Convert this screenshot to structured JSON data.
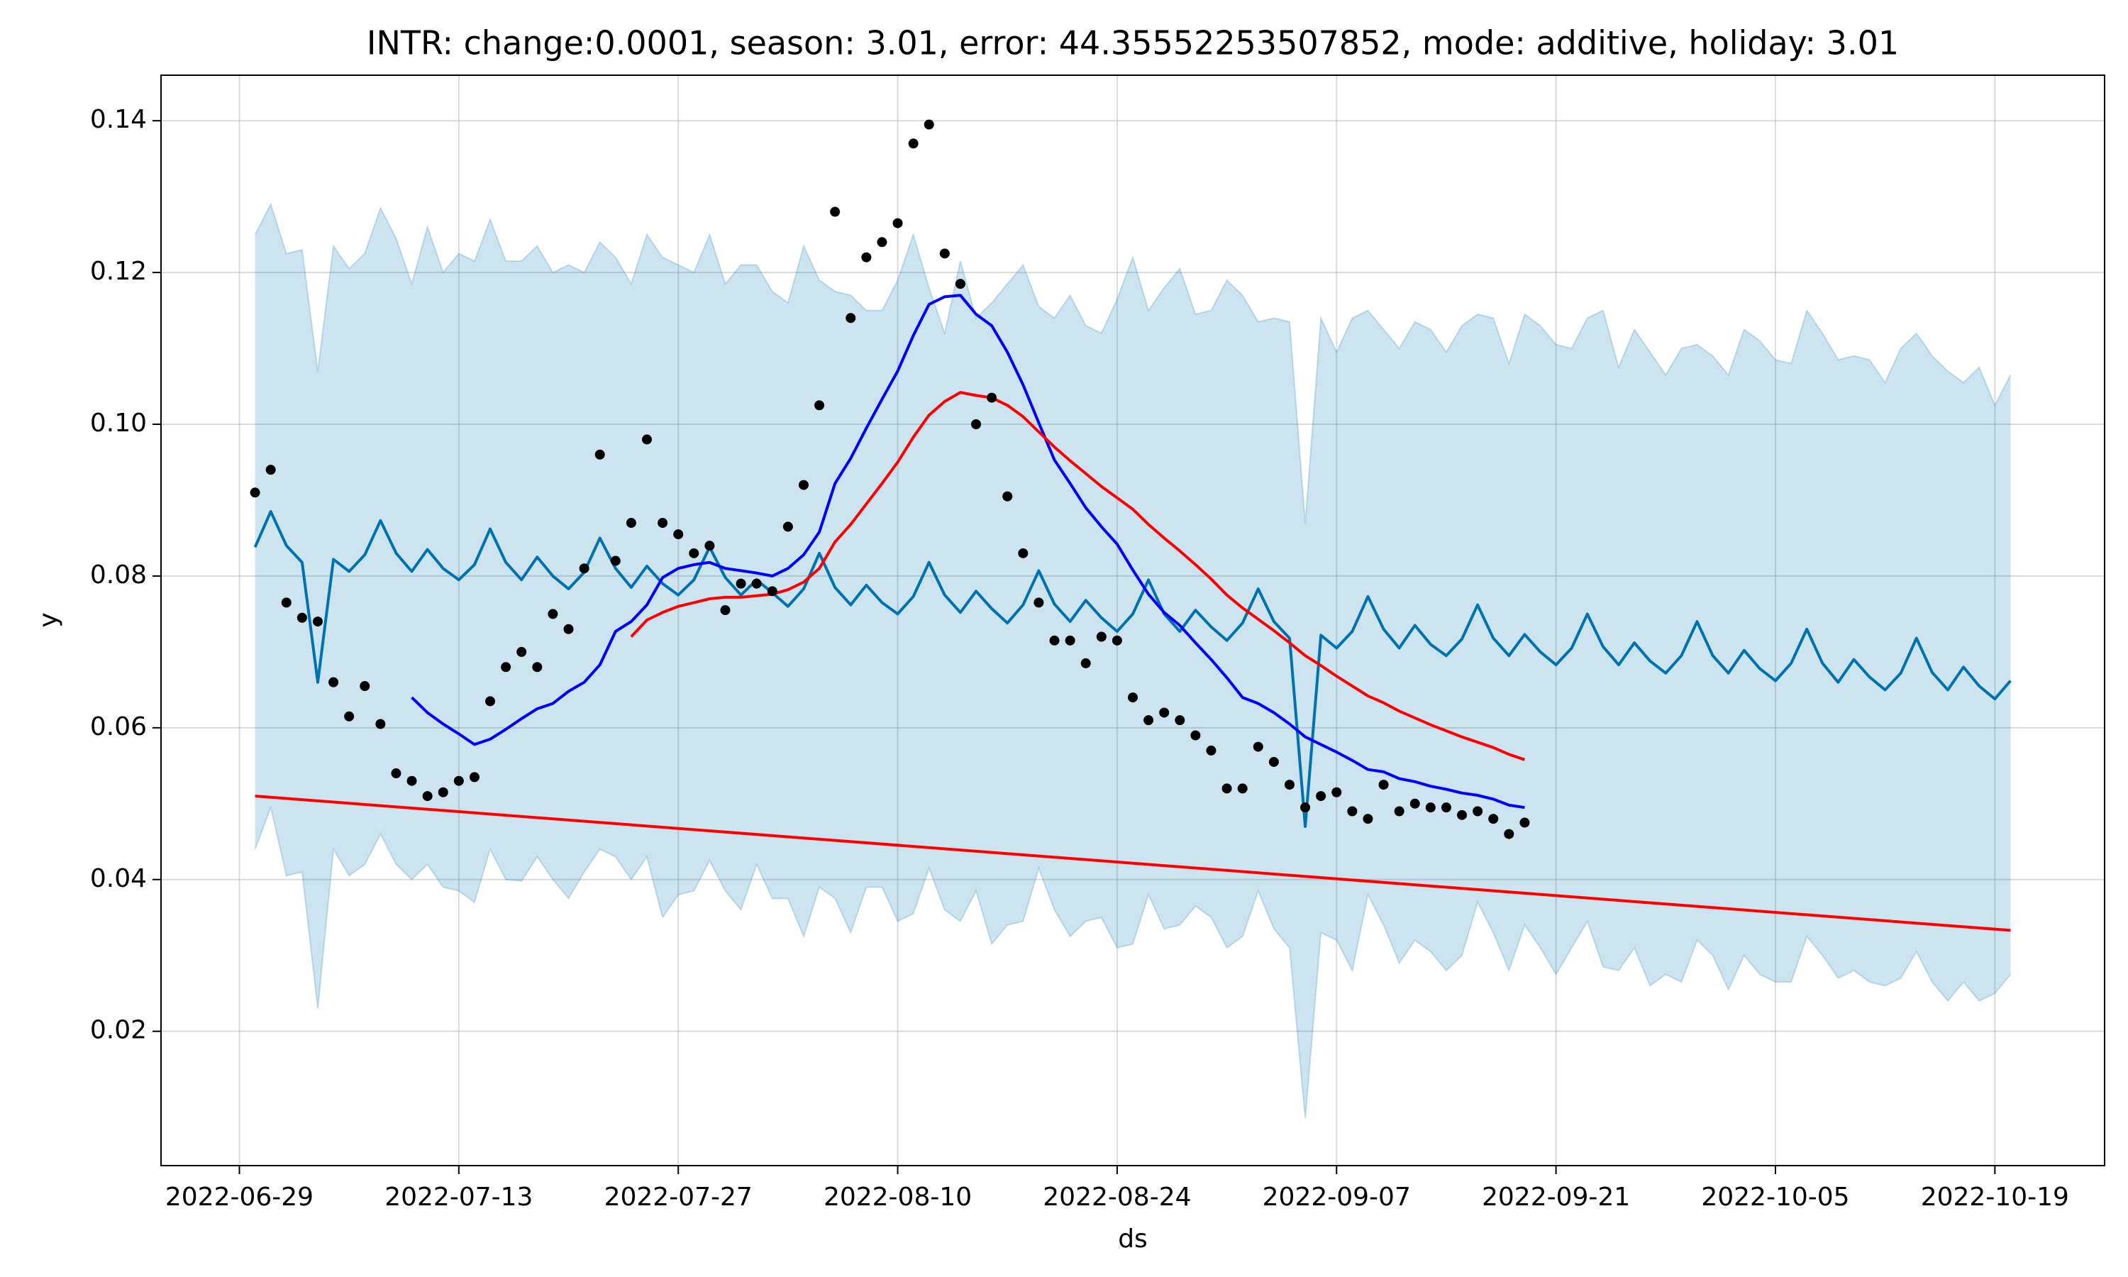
{
  "chart_data": {
    "type": "forecast",
    "title": "INTR: change:0.0001, season: 3.01, error: 44.35552253507852, mode: additive, holiday: 3.01",
    "xlabel": "ds",
    "ylabel": "y",
    "grid": true,
    "xlim": [
      "2022-06-24",
      "2022-10-26"
    ],
    "xticks": [
      "2022-06-29",
      "2022-07-13",
      "2022-07-27",
      "2022-08-10",
      "2022-08-24",
      "2022-09-07",
      "2022-09-21",
      "2022-10-05",
      "2022-10-19"
    ],
    "ylim": [
      0.0023,
      0.146
    ],
    "yticks": [
      0.02,
      0.04,
      0.06,
      0.08,
      {
        "value": 0.1,
        "label": "0.10"
      },
      0.12,
      0.14
    ],
    "x": [
      "2022-06-30",
      "2022-07-01",
      "2022-07-02",
      "2022-07-03",
      "2022-07-04",
      "2022-07-05",
      "2022-07-06",
      "2022-07-07",
      "2022-07-08",
      "2022-07-09",
      "2022-07-10",
      "2022-07-11",
      "2022-07-12",
      "2022-07-13",
      "2022-07-14",
      "2022-07-15",
      "2022-07-16",
      "2022-07-17",
      "2022-07-18",
      "2022-07-19",
      "2022-07-20",
      "2022-07-21",
      "2022-07-22",
      "2022-07-23",
      "2022-07-24",
      "2022-07-25",
      "2022-07-26",
      "2022-07-27",
      "2022-07-28",
      "2022-07-29",
      "2022-07-30",
      "2022-07-31",
      "2022-08-01",
      "2022-08-02",
      "2022-08-03",
      "2022-08-04",
      "2022-08-05",
      "2022-08-06",
      "2022-08-07",
      "2022-08-08",
      "2022-08-09",
      "2022-08-10",
      "2022-08-11",
      "2022-08-12",
      "2022-08-13",
      "2022-08-14",
      "2022-08-15",
      "2022-08-16",
      "2022-08-17",
      "2022-08-18",
      "2022-08-19",
      "2022-08-20",
      "2022-08-21",
      "2022-08-22",
      "2022-08-23",
      "2022-08-24",
      "2022-08-25",
      "2022-08-26",
      "2022-08-27",
      "2022-08-28",
      "2022-08-29",
      "2022-08-30",
      "2022-08-31",
      "2022-09-01",
      "2022-09-02",
      "2022-09-03",
      "2022-09-04",
      "2022-09-05",
      "2022-09-06",
      "2022-09-07",
      "2022-09-08",
      "2022-09-09",
      "2022-09-10",
      "2022-09-11",
      "2022-09-12",
      "2022-09-13",
      "2022-09-14",
      "2022-09-15",
      "2022-09-16",
      "2022-09-17",
      "2022-09-18",
      "2022-09-19",
      "2022-09-20",
      "2022-09-21",
      "2022-09-22",
      "2022-09-23",
      "2022-09-24",
      "2022-09-25",
      "2022-09-26",
      "2022-09-27",
      "2022-09-28",
      "2022-09-29",
      "2022-09-30",
      "2022-10-01",
      "2022-10-02",
      "2022-10-03",
      "2022-10-04",
      "2022-10-05",
      "2022-10-06",
      "2022-10-07",
      "2022-10-08",
      "2022-10-09",
      "2022-10-10",
      "2022-10-11",
      "2022-10-12",
      "2022-10-13",
      "2022-10-14",
      "2022-10-15",
      "2022-10-16",
      "2022-10-17",
      "2022-10-18",
      "2022-10-19",
      "2022-10-20"
    ],
    "series": [
      {
        "mark": "band",
        "color": "#0072B2",
        "opacity": 0.2,
        "upper": [
          0.125,
          0.129,
          0.1225,
          0.123,
          0.107,
          0.1235,
          0.1205,
          0.1225,
          0.1285,
          0.1245,
          0.1185,
          0.126,
          0.12,
          0.1225,
          0.1215,
          0.127,
          0.1215,
          0.1215,
          0.1235,
          0.12,
          0.121,
          0.12,
          0.124,
          0.122,
          0.1185,
          0.125,
          0.122,
          0.121,
          0.12,
          0.125,
          0.1185,
          0.121,
          0.121,
          0.1175,
          0.116,
          0.1235,
          0.119,
          0.1175,
          0.117,
          0.115,
          0.115,
          0.119,
          0.125,
          0.118,
          0.112,
          0.1215,
          0.114,
          0.116,
          0.1185,
          0.121,
          0.1155,
          0.114,
          0.117,
          0.113,
          0.112,
          0.1165,
          0.122,
          0.115,
          0.118,
          0.1205,
          0.1145,
          0.115,
          0.119,
          0.117,
          0.1135,
          0.114,
          0.1135,
          0.087,
          0.114,
          0.1095,
          0.114,
          0.115,
          0.1125,
          0.11,
          0.1135,
          0.1125,
          0.1095,
          0.113,
          0.1145,
          0.114,
          0.108,
          0.1145,
          0.113,
          0.1105,
          0.11,
          0.114,
          0.115,
          0.1075,
          0.1125,
          0.1095,
          0.1065,
          0.11,
          0.1105,
          0.109,
          0.1065,
          0.1125,
          0.111,
          0.1085,
          0.108,
          0.115,
          0.112,
          0.1085,
          0.109,
          0.1085,
          0.1055,
          0.11,
          0.112,
          0.109,
          0.107,
          0.1055,
          0.1075,
          0.1025,
          0.1065
        ],
        "lower": [
          0.044,
          0.0495,
          0.0405,
          0.041,
          0.023,
          0.044,
          0.0405,
          0.042,
          0.046,
          0.042,
          0.04,
          0.042,
          0.039,
          0.0385,
          0.037,
          0.044,
          0.04,
          0.0398,
          0.043,
          0.04,
          0.0375,
          0.041,
          0.044,
          0.043,
          0.04,
          0.043,
          0.035,
          0.038,
          0.0385,
          0.0425,
          0.0385,
          0.036,
          0.042,
          0.0375,
          0.0375,
          0.0325,
          0.039,
          0.0375,
          0.033,
          0.039,
          0.039,
          0.0345,
          0.0355,
          0.0415,
          0.036,
          0.0345,
          0.0385,
          0.0315,
          0.034,
          0.0345,
          0.0415,
          0.036,
          0.0325,
          0.0345,
          0.035,
          0.031,
          0.0315,
          0.038,
          0.0335,
          0.034,
          0.0365,
          0.035,
          0.031,
          0.0325,
          0.0385,
          0.0335,
          0.031,
          0.0085,
          0.033,
          0.032,
          0.028,
          0.038,
          0.034,
          0.029,
          0.032,
          0.0305,
          0.028,
          0.03,
          0.037,
          0.033,
          0.028,
          0.034,
          0.031,
          0.0275,
          0.031,
          0.0345,
          0.0285,
          0.028,
          0.031,
          0.026,
          0.0275,
          0.0265,
          0.032,
          0.03,
          0.0255,
          0.03,
          0.0275,
          0.0265,
          0.0265,
          0.0325,
          0.03,
          0.027,
          0.028,
          0.0265,
          0.026,
          0.027,
          0.0305,
          0.0265,
          0.024,
          0.0265,
          0.024,
          0.025,
          0.0275
        ]
      },
      {
        "mark": "line",
        "color": "#0072B2",
        "values": [
          0.0838,
          0.0885,
          0.084,
          0.0818,
          0.066,
          0.0822,
          0.0806,
          0.0828,
          0.0873,
          0.083,
          0.0806,
          0.0835,
          0.081,
          0.0795,
          0.0815,
          0.0862,
          0.0818,
          0.0795,
          0.0825,
          0.08,
          0.0783,
          0.0805,
          0.085,
          0.081,
          0.0785,
          0.0813,
          0.079,
          0.0775,
          0.0795,
          0.0838,
          0.0798,
          0.0775,
          0.0795,
          0.0778,
          0.076,
          0.0783,
          0.083,
          0.0785,
          0.0762,
          0.0788,
          0.0765,
          0.075,
          0.0773,
          0.0818,
          0.0775,
          0.0752,
          0.078,
          0.0757,
          0.0738,
          0.0762,
          0.0807,
          0.0763,
          0.074,
          0.0768,
          0.0745,
          0.0727,
          0.075,
          0.0795,
          0.075,
          0.0727,
          0.0755,
          0.0733,
          0.0715,
          0.0738,
          0.0783,
          0.074,
          0.0718,
          0.047,
          0.0722,
          0.0705,
          0.0727,
          0.0773,
          0.073,
          0.0705,
          0.0735,
          0.071,
          0.0695,
          0.0717,
          0.0762,
          0.0718,
          0.0695,
          0.0723,
          0.07,
          0.0683,
          0.0705,
          0.075,
          0.0707,
          0.0683,
          0.0712,
          0.0688,
          0.0672,
          0.0695,
          0.074,
          0.0695,
          0.0672,
          0.0702,
          0.0678,
          0.0662,
          0.0685,
          0.073,
          0.0685,
          0.066,
          0.069,
          0.0667,
          0.065,
          0.0672,
          0.0718,
          0.0673,
          0.065,
          0.068,
          0.0655,
          0.0638,
          0.0662
        ]
      },
      {
        "mark": "line",
        "color": "#ff0000",
        "x": [
          "2022-06-30",
          "2022-10-20"
        ],
        "values": [
          0.051,
          0.0333
        ]
      },
      {
        "mark": "line",
        "color": "#0000ff",
        "values": [
          null,
          null,
          null,
          null,
          null,
          null,
          null,
          null,
          null,
          null,
          0.064,
          0.062,
          0.0605,
          0.0592,
          0.0578,
          0.0585,
          0.0598,
          0.0612,
          0.0625,
          0.0632,
          0.0648,
          0.066,
          0.0683,
          0.0727,
          0.074,
          0.0762,
          0.0798,
          0.081,
          0.0815,
          0.0818,
          0.081,
          0.0807,
          0.0804,
          0.08,
          0.081,
          0.0828,
          0.0858,
          0.0922,
          0.0955,
          0.0995,
          0.1033,
          0.107,
          0.1117,
          0.1158,
          0.1168,
          0.117,
          0.1145,
          0.113,
          0.1095,
          0.1052,
          0.1002,
          0.0953,
          0.0922,
          0.089,
          0.0865,
          0.0842,
          0.0808,
          0.0776,
          0.0752,
          0.0735,
          0.0712,
          0.069,
          0.0666,
          0.064,
          0.0632,
          0.062,
          0.0605,
          0.0588,
          0.0578,
          0.0568,
          0.0557,
          0.0545,
          0.0542,
          0.0533,
          0.0529,
          0.0523,
          0.0519,
          0.0514,
          0.0511,
          0.0506,
          0.0498,
          0.0495,
          null,
          null,
          null,
          null,
          null,
          null,
          null,
          null,
          null,
          null,
          null,
          null,
          null,
          null,
          null,
          null,
          null,
          null,
          null,
          null,
          null,
          null,
          null,
          null,
          null,
          null,
          null,
          null,
          null,
          null,
          null
        ]
      },
      {
        "mark": "line",
        "color": "#ff0000",
        "values": [
          null,
          null,
          null,
          null,
          null,
          null,
          null,
          null,
          null,
          null,
          null,
          null,
          null,
          null,
          null,
          null,
          null,
          null,
          null,
          null,
          null,
          null,
          null,
          null,
          0.072,
          0.0742,
          0.0752,
          0.076,
          0.0765,
          0.077,
          0.0772,
          0.0772,
          0.0774,
          0.0776,
          0.0782,
          0.0792,
          0.081,
          0.0845,
          0.0868,
          0.0895,
          0.0922,
          0.095,
          0.0983,
          0.1012,
          0.103,
          0.1042,
          0.1038,
          0.1035,
          0.1025,
          0.101,
          0.099,
          0.097,
          0.0952,
          0.0935,
          0.0918,
          0.0903,
          0.0888,
          0.0868,
          0.085,
          0.0833,
          0.0815,
          0.0796,
          0.0775,
          0.0758,
          0.0743,
          0.0728,
          0.0712,
          0.0695,
          0.0682,
          0.0668,
          0.0655,
          0.0642,
          0.0633,
          0.0622,
          0.0613,
          0.0604,
          0.0596,
          0.0588,
          0.0581,
          0.0574,
          0.0565,
          0.0558,
          null,
          null,
          null,
          null,
          null,
          null,
          null,
          null,
          null,
          null,
          null,
          null,
          null,
          null,
          null,
          null,
          null,
          null,
          null,
          null,
          null,
          null,
          null,
          null,
          null,
          null,
          null,
          null,
          null,
          null,
          null
        ]
      },
      {
        "mark": "point",
        "color": "#000000",
        "values": [
          0.091,
          0.094,
          0.0765,
          0.0745,
          0.074,
          0.066,
          0.0615,
          0.0655,
          0.0605,
          0.054,
          0.053,
          0.051,
          0.0515,
          0.053,
          0.0535,
          0.0635,
          0.068,
          0.07,
          0.068,
          0.075,
          0.073,
          0.081,
          0.096,
          0.082,
          0.087,
          0.098,
          0.087,
          0.0855,
          0.083,
          0.084,
          0.0755,
          0.079,
          0.079,
          0.078,
          0.0865,
          0.092,
          0.1025,
          0.128,
          0.114,
          0.122,
          0.124,
          0.1265,
          0.137,
          0.1395,
          0.1225,
          0.1185,
          0.1,
          0.1035,
          0.0905,
          0.083,
          0.0765,
          0.0715,
          0.0715,
          0.0685,
          0.072,
          0.0715,
          0.064,
          0.061,
          0.062,
          0.061,
          0.059,
          0.057,
          0.052,
          0.052,
          0.0575,
          0.0555,
          0.0525,
          0.0495,
          0.051,
          0.0515,
          0.049,
          0.048,
          0.0525,
          0.049,
          0.05,
          0.0495,
          0.0495,
          0.0485,
          0.049,
          0.048,
          0.046,
          0.0475,
          null,
          null,
          null,
          null,
          null,
          null,
          null,
          null,
          null,
          null,
          null,
          null,
          null,
          null,
          null,
          null,
          null,
          null,
          null,
          null,
          null,
          null,
          null,
          null,
          null,
          null,
          null,
          null,
          null,
          null,
          null
        ]
      }
    ]
  }
}
